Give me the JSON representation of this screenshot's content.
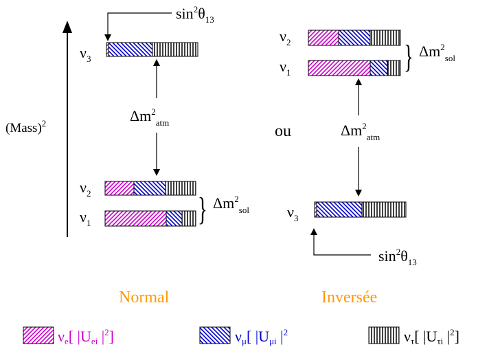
{
  "colors": {
    "nu_e": "#cc00cc",
    "nu_mu": "#0000cc",
    "nu_tau": "#000000",
    "caption": "#ff9900",
    "line": "#000000"
  },
  "axis": {
    "label_main": "(Mass)",
    "label_sup": "2"
  },
  "normal": {
    "caption": "Normal",
    "nu3": {
      "label": "ν",
      "index": "3"
    },
    "nu2": {
      "label": "ν",
      "index": "2"
    },
    "nu1": {
      "label": "ν",
      "index": "1"
    },
    "theta_label": {
      "main": "sin",
      "sup": "2",
      "theta": "θ",
      "sub": "13"
    },
    "atm_label": {
      "main": "Δm",
      "sup": "2",
      "sub": "atm"
    },
    "sol_label": {
      "brace": "}",
      "main": "Δm",
      "sup": "2",
      "sub": "sol"
    }
  },
  "inverted": {
    "caption": "Inversée",
    "nu2": {
      "label": "ν",
      "index": "2"
    },
    "nu1": {
      "label": "ν",
      "index": "1"
    },
    "nu3": {
      "label": "ν",
      "index": "3"
    },
    "theta_label": {
      "main": "sin",
      "sup": "2",
      "theta": "θ",
      "sub": "13"
    },
    "atm_label": {
      "main": "Δm",
      "sup": "2",
      "sub": "atm"
    },
    "sol_label": {
      "brace": "}",
      "main": "Δm",
      "sup": "2",
      "sub": "sol"
    }
  },
  "ou": "ou",
  "bars_flavor_fractions": {
    "nu3": {
      "e": 0.02,
      "mu": 0.48,
      "tau": 0.5
    },
    "nu2": {
      "e": 0.33,
      "mu": 0.33,
      "tau": 0.34
    },
    "nu1": {
      "e": 0.67,
      "mu": 0.18,
      "tau": 0.15
    }
  },
  "legend": {
    "e": {
      "nu": "ν",
      "flavor": "e",
      "open": "[ |U",
      "sub": "ei",
      "close": " |",
      "sup": "2",
      "end": "]"
    },
    "mu": {
      "nu": "ν",
      "flavor": "μ",
      "open": "[ |U",
      "sub": "μi",
      "close": " |",
      "sup": "2",
      "end": ""
    },
    "tau": {
      "nu": "ν",
      "flavor": "τ",
      "open": "[ |U",
      "sub": "τi",
      "close": " |",
      "sup": "2",
      "end": "]"
    }
  }
}
